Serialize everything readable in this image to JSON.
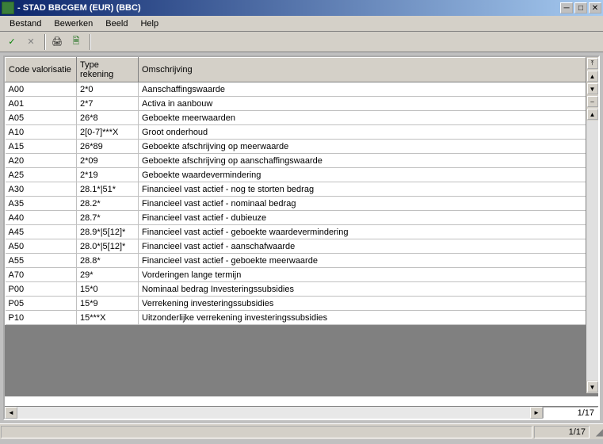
{
  "window": {
    "title": "- STAD BBCGEM (EUR) (BBC)"
  },
  "menu": {
    "items": [
      "Bestand",
      "Bewerken",
      "Beeld",
      "Help"
    ]
  },
  "toolbar": {
    "confirm_glyph": "✓",
    "cancel_glyph": "✕",
    "print_glyph": "🖨",
    "export_glyph": "🗎"
  },
  "grid": {
    "columns": [
      "Code valorisatie",
      "Type rekening",
      "Omschrijving"
    ],
    "rows": [
      [
        "A00",
        "2*0",
        "Aanschaffingswaarde"
      ],
      [
        "A01",
        "2*7",
        "Activa in aanbouw"
      ],
      [
        "A05",
        "26*8",
        "Geboekte meerwaarden"
      ],
      [
        "A10",
        "2[0-7]***X",
        "Groot onderhoud"
      ],
      [
        "A15",
        "26*89",
        "Geboekte afschrijving op meerwaarde"
      ],
      [
        "A20",
        "2*09",
        "Geboekte afschrijving op aanschaffingswaarde"
      ],
      [
        "A25",
        "2*19",
        "Geboekte waardevermindering"
      ],
      [
        "A30",
        "28.1*|51*",
        "Financieel vast actief - nog te storten bedrag"
      ],
      [
        "A35",
        "28.2*",
        "Financieel vast actief - nominaal bedrag"
      ],
      [
        "A40",
        "28.7*",
        "Financieel vast actief - dubieuze"
      ],
      [
        "A45",
        "28.9*|5[12]*",
        "Financieel vast actief - geboekte waardevermindering"
      ],
      [
        "A50",
        "28.0*|5[12]*",
        "Financieel vast actief - aanschafwaarde"
      ],
      [
        "A55",
        "28.8*",
        "Financieel vast actief - geboekte meerwaarde"
      ],
      [
        "A70",
        "29*",
        "Vorderingen lange termijn"
      ],
      [
        "P00",
        "15*0",
        "Nominaal bedrag Investeringssubsidies"
      ],
      [
        "P05",
        "15*9",
        "Verrekening investeringssubsidies"
      ],
      [
        "P10",
        "15***X",
        "Uitzonderlijke verrekening investeringssubsidies"
      ]
    ]
  },
  "paging": {
    "grid_page": "1/17",
    "status_page": "1/17"
  },
  "colors": {
    "titlebar_from": "#0a246a",
    "titlebar_to": "#a6caf0",
    "chrome": "#d4d0c8",
    "empty": "#808080"
  }
}
